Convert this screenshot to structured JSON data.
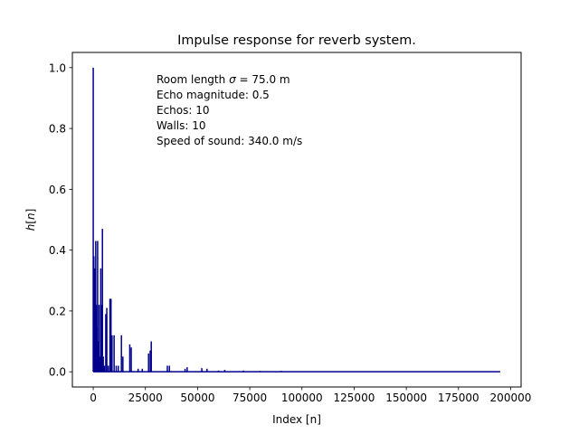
{
  "chart_data": {
    "type": "line",
    "title": "Impulse response for reverb system.",
    "xlabel": "Index [n]",
    "ylabel_prefix": "h",
    "ylabel_index": "n",
    "xlim": [
      -10000,
      205000
    ],
    "ylim": [
      -0.05,
      1.05
    ],
    "xticks": [
      0,
      25000,
      50000,
      75000,
      100000,
      125000,
      150000,
      175000,
      200000
    ],
    "xtick_labels": [
      "0",
      "25000",
      "50000",
      "75000",
      "100000",
      "125000",
      "150000",
      "175000",
      "200000"
    ],
    "yticks": [
      0.0,
      0.2,
      0.4,
      0.6,
      0.8,
      1.0
    ],
    "ytick_labels": [
      "0.0",
      "0.2",
      "0.4",
      "0.6",
      "0.8",
      "1.0"
    ],
    "grid": false,
    "legend": false,
    "annotation": {
      "room_length_prefix": "Room length ",
      "room_length_symbol": "σ",
      "room_length_suffix": " = 75.0 m",
      "lines": [
        "Echo magnitude: 0.5",
        "Echos: 10",
        "Walls: 10",
        "Speed of sound: 340.0 m/s"
      ]
    },
    "series": [
      {
        "color": "#00008b",
        "x_end": 195000,
        "spikes": [
          [
            0,
            1.0
          ],
          [
            300,
            0.38
          ],
          [
            600,
            0.2
          ],
          [
            900,
            0.34
          ],
          [
            1200,
            0.43
          ],
          [
            1500,
            0.22
          ],
          [
            1800,
            0.15
          ],
          [
            2100,
            0.43
          ],
          [
            2400,
            0.1
          ],
          [
            2800,
            0.22
          ],
          [
            3200,
            0.05
          ],
          [
            3600,
            0.34
          ],
          [
            4000,
            0.22
          ],
          [
            4400,
            0.47
          ],
          [
            4800,
            0.05
          ],
          [
            5300,
            0.02
          ],
          [
            6000,
            0.19
          ],
          [
            6500,
            0.21
          ],
          [
            7200,
            0.02
          ],
          [
            8000,
            0.24
          ],
          [
            8500,
            0.24
          ],
          [
            9000,
            0.12
          ],
          [
            10000,
            0.12
          ],
          [
            11000,
            0.02
          ],
          [
            12000,
            0.02
          ],
          [
            13500,
            0.12
          ],
          [
            14200,
            0.05
          ],
          [
            17500,
            0.09
          ],
          [
            18200,
            0.08
          ],
          [
            21500,
            0.01
          ],
          [
            23500,
            0.01
          ],
          [
            26500,
            0.06
          ],
          [
            27300,
            0.07
          ],
          [
            27800,
            0.1
          ],
          [
            35500,
            0.02
          ],
          [
            36500,
            0.02
          ],
          [
            44000,
            0.01
          ],
          [
            45000,
            0.015
          ],
          [
            52000,
            0.012
          ],
          [
            54500,
            0.01
          ],
          [
            60000,
            0.004
          ],
          [
            63000,
            0.006
          ],
          [
            72000,
            0.004
          ],
          [
            80000,
            0.003
          ],
          [
            90000,
            0.003
          ]
        ]
      }
    ]
  }
}
